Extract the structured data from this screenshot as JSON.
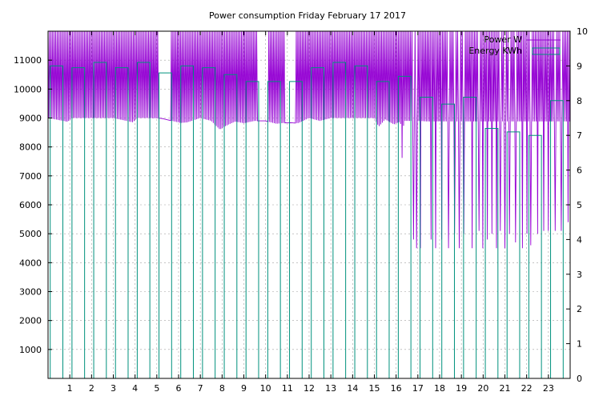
{
  "chart_data": {
    "type": "line",
    "title": "Power consumption Friday February 17 2017",
    "x_ticks": [
      "1",
      "2",
      "3",
      "4",
      "5",
      "6",
      "7",
      "8",
      "9",
      "10",
      "11",
      "12",
      "13",
      "14",
      "15",
      "16",
      "17",
      "18",
      "19",
      "20",
      "21",
      "22",
      "23"
    ],
    "x_range": [
      0,
      24
    ],
    "y_left_ticks": [
      "1000",
      "2000",
      "3000",
      "4000",
      "5000",
      "6000",
      "7000",
      "8000",
      "9000",
      "10000",
      "11000"
    ],
    "y_left_range": [
      0,
      12000
    ],
    "y_right_ticks": [
      "0",
      "1",
      "2",
      "3",
      "4",
      "5",
      "6",
      "7",
      "8",
      "9",
      "10"
    ],
    "y_right_range": [
      0,
      10
    ],
    "legend": {
      "position": "top-right"
    },
    "grid": true,
    "series": [
      {
        "name": "Power W",
        "axis": "left",
        "style": "line",
        "color": "#9400d3",
        "oscillation_top": 12000,
        "gaps": [
          [
            5.1,
            5.65
          ],
          [
            9.6,
            10.15
          ],
          [
            10.9,
            11.4
          ]
        ],
        "baseline": [
          [
            0,
            9000
          ],
          [
            0.9,
            8870
          ],
          [
            1.1,
            9000
          ],
          [
            2,
            9000
          ],
          [
            3,
            9000
          ],
          [
            3.9,
            8850
          ],
          [
            4.1,
            9000
          ],
          [
            4.5,
            9000
          ],
          [
            5.2,
            8990
          ],
          [
            6.1,
            8830
          ],
          [
            6.4,
            8850
          ],
          [
            7,
            9000
          ],
          [
            7.5,
            8900
          ],
          [
            7.9,
            8600
          ],
          [
            8.1,
            8700
          ],
          [
            8.6,
            8880
          ],
          [
            9,
            8820
          ],
          [
            9.5,
            8900
          ],
          [
            10,
            8900
          ],
          [
            10.5,
            8800
          ],
          [
            11,
            8840
          ],
          [
            11.5,
            8820
          ],
          [
            12,
            9000
          ],
          [
            12.5,
            8900
          ],
          [
            13,
            9000
          ],
          [
            14,
            9000
          ],
          [
            14.5,
            9000
          ],
          [
            15,
            9000
          ],
          [
            15.2,
            8700
          ],
          [
            15.5,
            8950
          ],
          [
            15.9,
            8780
          ],
          [
            16.2,
            8880
          ],
          [
            16.3,
            7200
          ],
          [
            16.35,
            8900
          ],
          [
            17,
            8900
          ],
          [
            17.5,
            8880
          ]
        ],
        "dips": [
          [
            16.8,
            4800
          ],
          [
            16.95,
            4500
          ],
          [
            17.1,
            4500
          ],
          [
            17.6,
            4800
          ],
          [
            17.8,
            4500
          ],
          [
            18.1,
            4800
          ],
          [
            18.4,
            4500
          ],
          [
            18.7,
            5000
          ],
          [
            18.9,
            4500
          ],
          [
            19.1,
            5000
          ],
          [
            19.5,
            4500
          ],
          [
            19.8,
            5100
          ],
          [
            20.0,
            4500
          ],
          [
            20.2,
            4800
          ],
          [
            20.4,
            5000
          ],
          [
            20.6,
            4500
          ],
          [
            20.8,
            5100
          ],
          [
            21.0,
            4500
          ],
          [
            21.2,
            5000
          ],
          [
            21.5,
            4700
          ],
          [
            21.8,
            4500
          ],
          [
            22.0,
            5000
          ],
          [
            22.2,
            4600
          ],
          [
            22.5,
            5000
          ],
          [
            22.8,
            5100
          ],
          [
            23.0,
            5100
          ],
          [
            23.3,
            5100
          ],
          [
            23.6,
            5100
          ],
          [
            23.9,
            5400
          ]
        ]
      },
      {
        "name": "Energy KWh",
        "axis": "right",
        "style": "steps",
        "color": "#00917d",
        "x": [
          0.1,
          1.1,
          2.1,
          3.1,
          4.1,
          5.1,
          6.1,
          7.1,
          8.1,
          9.1,
          10.1,
          11.1,
          12.1,
          13.1,
          14.1,
          15.1,
          16.1,
          17.1,
          18.1,
          19.1,
          20.1,
          21.1,
          22.1,
          23.1
        ],
        "values": [
          9.0,
          8.95,
          9.1,
          8.95,
          9.1,
          8.8,
          9.0,
          8.95,
          8.75,
          8.55,
          8.55,
          8.55,
          8.95,
          9.1,
          9.0,
          8.55,
          8.7,
          8.1,
          7.9,
          8.1,
          7.2,
          7.1,
          7.0,
          8.0
        ]
      }
    ]
  }
}
